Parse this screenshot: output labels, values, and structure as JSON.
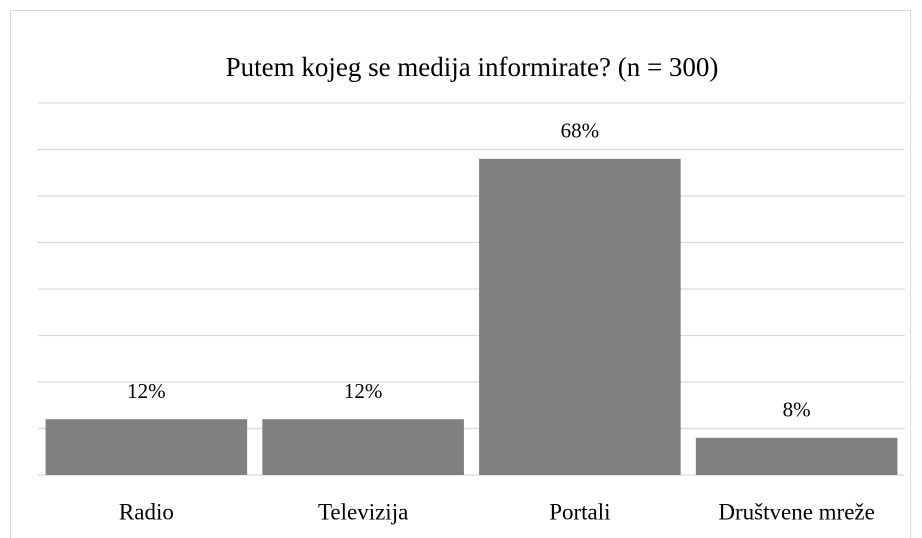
{
  "chart_data": {
    "type": "bar",
    "title": "Putem kojeg se medija informirate? (n = 300)",
    "categories": [
      "Radio",
      "Televizija",
      "Portali",
      "Društvene mreže"
    ],
    "values": [
      12,
      12,
      68,
      8
    ],
    "value_labels": [
      "12%",
      "12%",
      "68%",
      "8%"
    ],
    "color": "#808080",
    "ylim": [
      0,
      80
    ],
    "yticks": [
      0,
      10,
      20,
      30,
      40,
      50,
      60,
      70,
      80
    ],
    "grid": true
  }
}
